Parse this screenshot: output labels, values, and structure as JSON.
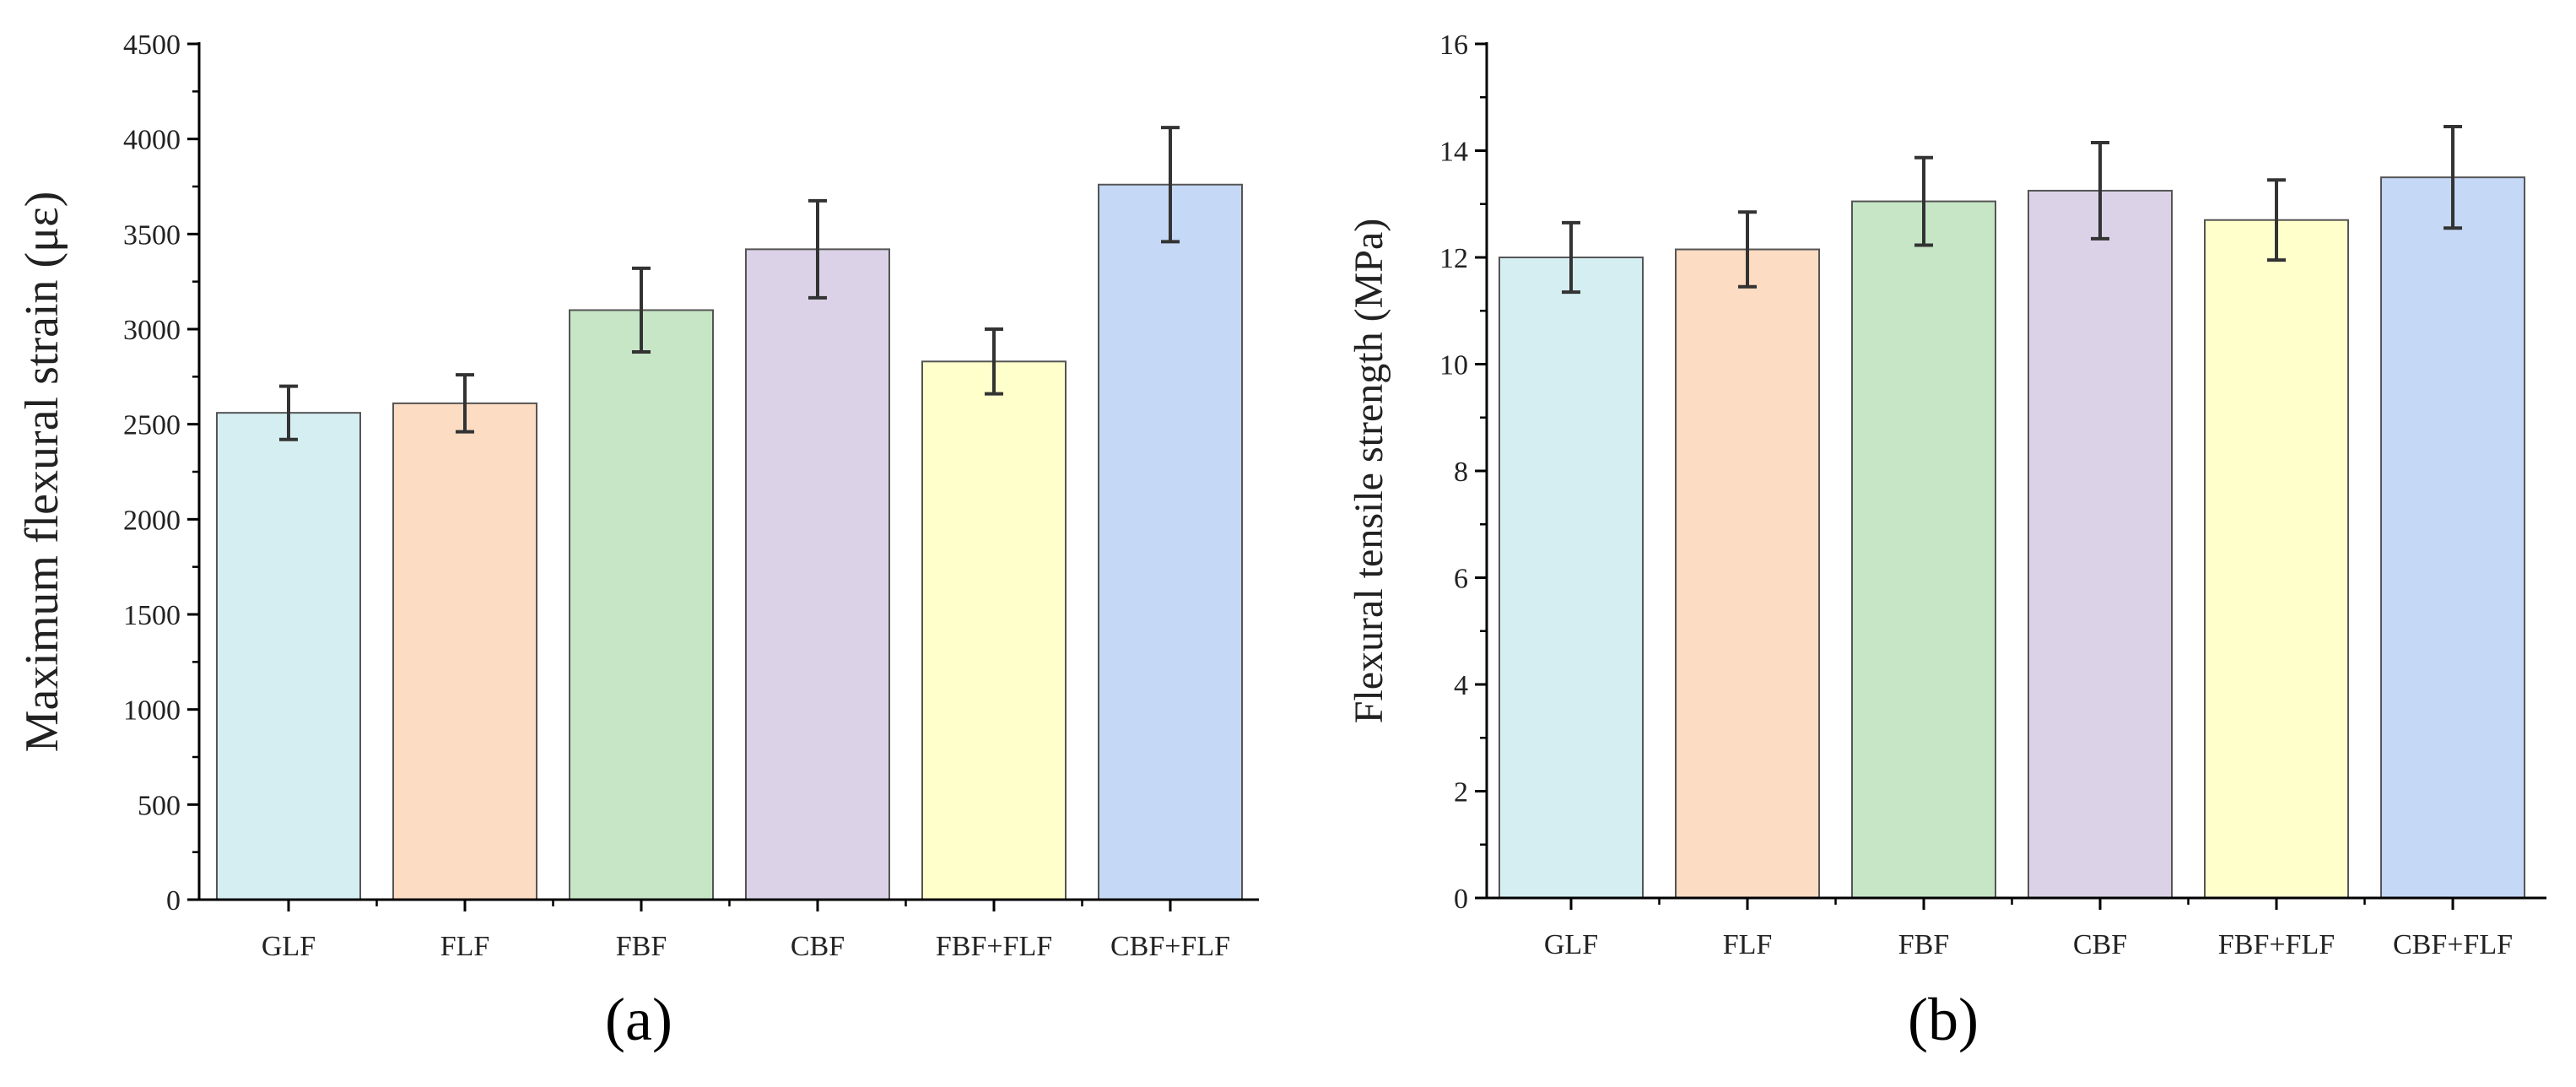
{
  "chart_data": [
    {
      "type": "bar",
      "panel_label": "(a)",
      "title": "",
      "xlabel": "",
      "ylabel": "Maximum flexural strain (με)",
      "ylim": [
        0,
        4500
      ],
      "yticks": [
        0,
        500,
        1000,
        1500,
        2000,
        2500,
        3000,
        3500,
        4000,
        4500
      ],
      "categories": [
        "GLF",
        "FLF",
        "FBF",
        "CBF",
        "FBF+FLF",
        "CBF+FLF"
      ],
      "values": [
        2560,
        2610,
        3100,
        3420,
        2830,
        3760
      ],
      "errors": [
        140,
        150,
        220,
        255,
        170,
        300
      ],
      "colors": [
        "#d5eef2",
        "#fcdcc3",
        "#c6e6c6",
        "#dcd2e8",
        "#ffffcc",
        "#c5d8f5"
      ],
      "grid": false
    },
    {
      "type": "bar",
      "panel_label": "(b)",
      "title": "",
      "xlabel": "",
      "ylabel": "Flexural tensile strength (MPa)",
      "ylim": [
        0,
        16
      ],
      "yticks": [
        0,
        2,
        4,
        6,
        8,
        10,
        12,
        14,
        16
      ],
      "categories": [
        "GLF",
        "FLF",
        "FBF",
        "CBF",
        "FBF+FLF",
        "CBF+FLF"
      ],
      "values": [
        12.0,
        12.15,
        13.05,
        13.25,
        12.7,
        13.5
      ],
      "errors": [
        0.65,
        0.7,
        0.82,
        0.9,
        0.75,
        0.95
      ],
      "colors": [
        "#d5eef2",
        "#fcdcc3",
        "#c6e6c6",
        "#dcd2e8",
        "#ffffcc",
        "#c5d8f5"
      ],
      "grid": false
    }
  ]
}
